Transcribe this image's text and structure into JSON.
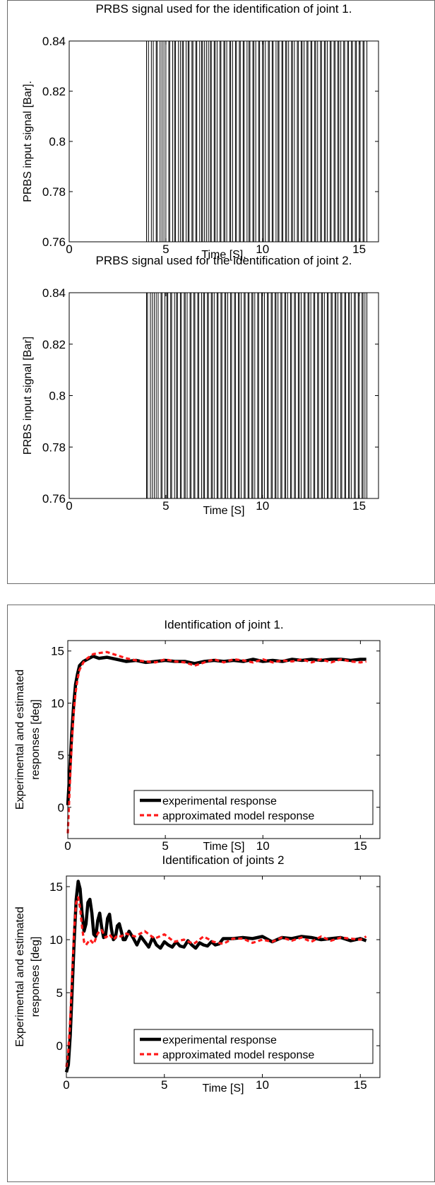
{
  "figures": {
    "top_panel": [
      {
        "title": "PRBS signal used for the identification of joint 1.",
        "xlabel": "Time [S].",
        "ylabel": "PRBS input signal [Bar]."
      },
      {
        "title": "PRBS signal used for the identification of joint 2.",
        "xlabel": "Time [S]",
        "ylabel": "PRBS input signal [Bar]"
      }
    ],
    "bottom_panel": [
      {
        "title": "Identification of joint  1.",
        "xlabel": "Time [S]",
        "ylabel_line1": "Experimental and estimated",
        "ylabel_line2": "responses [deg]"
      },
      {
        "title": "Identification of joints 2",
        "xlabel": "Time [S]",
        "ylabel_line1": "Experimental and estimated",
        "ylabel_line2": "responses [deg]"
      }
    ]
  },
  "colors": {
    "experimental": "#000000",
    "model": "#ff1a1a",
    "signal": "#000000"
  },
  "chart_data": [
    {
      "type": "line",
      "title": "PRBS signal used for the identification of joint 1.",
      "xlabel": "Time [S].",
      "ylabel": "PRBS input signal [Bar].",
      "xlim": [
        0,
        16
      ],
      "ylim": [
        0.76,
        0.84
      ],
      "x_ticks": [
        0,
        5,
        10,
        15
      ],
      "y_ticks": [
        0.76,
        0.78,
        0.8,
        0.82,
        0.84
      ],
      "y_tick_labels": [
        "0.76",
        "0.78",
        "0.8",
        "0.82",
        "0.84"
      ],
      "signal_start": 4.0,
      "signal_end": 15.4,
      "switch_times": [
        4.0,
        4.1,
        4.25,
        4.35,
        4.5,
        4.55,
        4.7,
        4.8,
        4.9,
        5.0,
        5.15,
        5.2,
        5.35,
        5.45,
        5.5,
        5.65,
        5.75,
        5.85,
        5.9,
        6.05,
        6.15,
        6.2,
        6.35,
        6.4,
        6.55,
        6.6,
        6.75,
        6.85,
        6.9,
        7.0,
        7.1,
        7.2,
        7.3,
        7.35,
        7.5,
        7.55,
        7.65,
        7.8,
        7.85,
        8.0,
        8.05,
        8.15,
        8.3,
        8.35,
        8.45,
        8.6,
        8.65,
        8.8,
        8.85,
        9.0,
        9.05,
        9.2,
        9.3,
        9.35,
        9.5,
        9.55,
        9.65,
        9.8,
        9.85,
        10.0,
        10.05,
        10.15,
        10.3,
        10.35,
        10.5,
        10.55,
        10.7,
        10.8,
        10.85,
        11.0,
        11.05,
        11.2,
        11.25,
        11.35,
        11.5,
        11.55,
        11.65,
        11.8,
        11.85,
        12.0,
        12.05,
        12.15,
        12.3,
        12.35,
        12.5,
        12.55,
        12.7,
        12.75,
        12.85,
        13.0,
        13.05,
        13.2,
        13.25,
        13.35,
        13.5,
        13.55,
        13.7,
        13.75,
        13.9,
        13.95,
        14.05,
        14.2,
        14.25,
        14.4,
        14.45,
        14.6,
        14.65,
        14.8,
        14.85,
        15.0,
        15.05,
        15.2,
        15.25,
        15.4
      ]
    },
    {
      "type": "line",
      "title": "PRBS signal used for the identification of joint 2.",
      "xlabel": "Time [S]",
      "ylabel": "PRBS input signal [Bar]",
      "xlim": [
        0,
        16
      ],
      "ylim": [
        0.76,
        0.84
      ],
      "x_ticks": [
        0,
        5,
        10,
        15
      ],
      "y_ticks": [
        0.76,
        0.78,
        0.8,
        0.82,
        0.84
      ],
      "y_tick_labels": [
        "0.76",
        "0.78",
        "0.8",
        "0.82",
        "0.84"
      ],
      "signal_start": 4.0,
      "signal_end": 15.4,
      "switch_times": [
        4.0,
        4.05,
        4.2,
        4.3,
        4.4,
        4.5,
        4.6,
        4.75,
        4.8,
        4.95,
        5.05,
        5.1,
        5.25,
        5.3,
        5.45,
        5.55,
        5.6,
        5.75,
        5.8,
        5.95,
        6.0,
        6.1,
        6.25,
        6.3,
        6.45,
        6.5,
        6.65,
        6.7,
        6.85,
        6.95,
        7.0,
        7.15,
        7.2,
        7.35,
        7.4,
        7.5,
        7.65,
        7.7,
        7.85,
        7.9,
        8.05,
        8.1,
        8.2,
        8.35,
        8.4,
        8.55,
        8.6,
        8.75,
        8.8,
        8.9,
        9.05,
        9.1,
        9.25,
        9.3,
        9.45,
        9.5,
        9.6,
        9.75,
        9.8,
        9.95,
        10.0,
        10.1,
        10.25,
        10.3,
        10.45,
        10.5,
        10.65,
        10.7,
        10.8,
        10.95,
        11.0,
        11.15,
        11.2,
        11.3,
        11.45,
        11.5,
        11.65,
        11.7,
        11.85,
        11.9,
        12.0,
        12.15,
        12.2,
        12.35,
        12.4,
        12.5,
        12.65,
        12.7,
        12.85,
        12.9,
        13.05,
        13.1,
        13.2,
        13.35,
        13.4,
        13.55,
        13.6,
        13.75,
        13.8,
        13.9,
        14.05,
        14.1,
        14.25,
        14.3,
        14.45,
        14.5,
        14.6,
        14.75,
        14.8,
        14.95,
        15.0,
        15.15,
        15.2,
        15.3,
        15.4
      ]
    },
    {
      "type": "line",
      "title": "Identification of joint  1.",
      "xlabel": "Time [S]",
      "ylabel": "Experimental and estimated responses [deg]",
      "xlim": [
        0,
        16
      ],
      "ylim": [
        -3,
        16
      ],
      "x_ticks": [
        0,
        5,
        10,
        15
      ],
      "y_ticks": [
        0,
        5,
        10,
        15
      ],
      "legend": "bottom-right",
      "series": [
        {
          "name": "experimental response",
          "x": [
            0,
            0.1,
            0.2,
            0.3,
            0.4,
            0.5,
            0.6,
            0.8,
            1.0,
            1.3,
            1.6,
            2.0,
            2.5,
            3.0,
            3.5,
            4.0,
            4.5,
            5.0,
            5.5,
            6.0,
            6.5,
            7.0,
            7.5,
            8.0,
            8.5,
            9.0,
            9.5,
            10.0,
            10.5,
            11.0,
            11.5,
            12.0,
            12.5,
            13.0,
            13.5,
            14.0,
            14.5,
            15.0,
            15.3
          ],
          "y": [
            0.2,
            3.5,
            7.0,
            9.8,
            11.8,
            12.8,
            13.6,
            14.0,
            14.2,
            14.5,
            14.3,
            14.4,
            14.2,
            14.0,
            14.1,
            13.9,
            14.0,
            14.1,
            14.0,
            14.0,
            13.8,
            14.0,
            14.1,
            14.0,
            14.1,
            14.0,
            14.2,
            14.0,
            14.1,
            14.0,
            14.2,
            14.1,
            14.2,
            14.1,
            14.2,
            14.2,
            14.1,
            14.2,
            14.2
          ]
        },
        {
          "name": "approximated model response",
          "x": [
            0,
            0.1,
            0.2,
            0.3,
            0.4,
            0.5,
            0.6,
            0.8,
            1.0,
            1.3,
            1.6,
            2.0,
            2.5,
            3.0,
            3.5,
            4.0,
            4.5,
            5.0,
            5.5,
            6.0,
            6.5,
            7.0,
            7.5,
            8.0,
            8.5,
            9.0,
            9.5,
            10.0,
            10.5,
            11.0,
            11.5,
            12.0,
            12.5,
            13.0,
            13.5,
            14.0,
            14.5,
            15.0,
            15.3
          ],
          "y": [
            -2.5,
            2.0,
            6.0,
            9.0,
            11.0,
            12.3,
            13.2,
            13.9,
            14.3,
            14.7,
            14.8,
            14.9,
            14.6,
            14.3,
            14.1,
            14.0,
            13.9,
            14.2,
            14.0,
            13.9,
            13.6,
            13.9,
            14.2,
            13.9,
            14.2,
            14.1,
            13.9,
            14.2,
            13.9,
            14.1,
            14.0,
            14.2,
            13.9,
            14.2,
            13.9,
            14.2,
            14.0,
            13.9,
            14.0
          ]
        }
      ]
    },
    {
      "type": "line",
      "title": "Identification of joints 2",
      "xlabel": "Time [S]",
      "ylabel": "Experimental and estimated responses [deg]",
      "xlim": [
        0,
        16
      ],
      "ylim": [
        -3,
        16
      ],
      "x_ticks": [
        0,
        5,
        10,
        15
      ],
      "y_ticks": [
        0,
        5,
        10,
        15
      ],
      "legend": "bottom-right",
      "series": [
        {
          "name": "experimental response",
          "x": [
            0,
            0.1,
            0.2,
            0.3,
            0.4,
            0.5,
            0.6,
            0.7,
            0.8,
            0.9,
            1.0,
            1.1,
            1.2,
            1.3,
            1.4,
            1.5,
            1.6,
            1.7,
            1.8,
            1.9,
            2.0,
            2.1,
            2.2,
            2.3,
            2.4,
            2.5,
            2.6,
            2.7,
            2.8,
            2.9,
            3.0,
            3.2,
            3.4,
            3.6,
            3.8,
            4.0,
            4.2,
            4.4,
            4.6,
            4.8,
            5.0,
            5.2,
            5.4,
            5.6,
            5.8,
            6.0,
            6.2,
            6.4,
            6.6,
            6.8,
            7.0,
            7.2,
            7.4,
            7.6,
            7.8,
            8.0,
            8.5,
            9.0,
            9.5,
            10.0,
            10.5,
            11.0,
            11.5,
            12.0,
            12.5,
            13.0,
            13.5,
            14.0,
            14.5,
            15.0,
            15.3
          ],
          "y": [
            -2.5,
            -1.8,
            1.0,
            5.5,
            10.0,
            13.8,
            15.5,
            14.8,
            12.5,
            10.8,
            11.5,
            13.5,
            13.8,
            12.5,
            10.5,
            10.3,
            11.8,
            12.5,
            11.2,
            10.2,
            10.4,
            12.0,
            12.4,
            11.0,
            10.0,
            10.2,
            11.3,
            11.5,
            10.8,
            10.0,
            10.0,
            10.8,
            10.2,
            9.5,
            10.3,
            9.8,
            9.3,
            10.2,
            9.5,
            9.2,
            9.8,
            9.5,
            9.3,
            9.8,
            9.4,
            9.3,
            9.9,
            9.5,
            9.2,
            9.7,
            9.5,
            9.4,
            9.8,
            9.5,
            9.6,
            10.1,
            10.1,
            10.2,
            10.1,
            10.3,
            9.8,
            10.2,
            10.1,
            10.3,
            10.2,
            10.0,
            10.1,
            10.2,
            9.9,
            10.1,
            9.9
          ]
        },
        {
          "name": "approximated model response",
          "x": [
            0,
            0.1,
            0.2,
            0.3,
            0.4,
            0.5,
            0.6,
            0.7,
            0.8,
            0.9,
            1.0,
            1.2,
            1.4,
            1.6,
            1.8,
            2.0,
            2.2,
            2.4,
            2.6,
            2.8,
            3.0,
            3.5,
            4.0,
            4.5,
            5.0,
            5.5,
            6.0,
            6.5,
            7.0,
            7.5,
            8.0,
            8.5,
            9.0,
            9.5,
            10.0,
            10.5,
            11.0,
            11.5,
            12.0,
            12.5,
            13.0,
            13.5,
            14.0,
            14.5,
            15.0,
            15.3
          ],
          "y": [
            -2.0,
            -0.5,
            2.5,
            7.0,
            11.0,
            13.5,
            14.0,
            13.0,
            11.2,
            9.8,
            9.5,
            10.0,
            9.6,
            10.6,
            10.9,
            10.2,
            10.5,
            10.0,
            10.4,
            10.3,
            10.6,
            10.3,
            10.8,
            10.1,
            10.5,
            9.8,
            10.0,
            9.6,
            10.3,
            9.8,
            9.6,
            10.1,
            10.1,
            9.7,
            10.0,
            9.8,
            10.2,
            9.9,
            10.2,
            9.8,
            10.3,
            9.9,
            10.2,
            10.1,
            10.0,
            10.3
          ]
        }
      ]
    }
  ],
  "legend": {
    "experimental_label": "experimental response",
    "model_label": "approximated model response"
  }
}
